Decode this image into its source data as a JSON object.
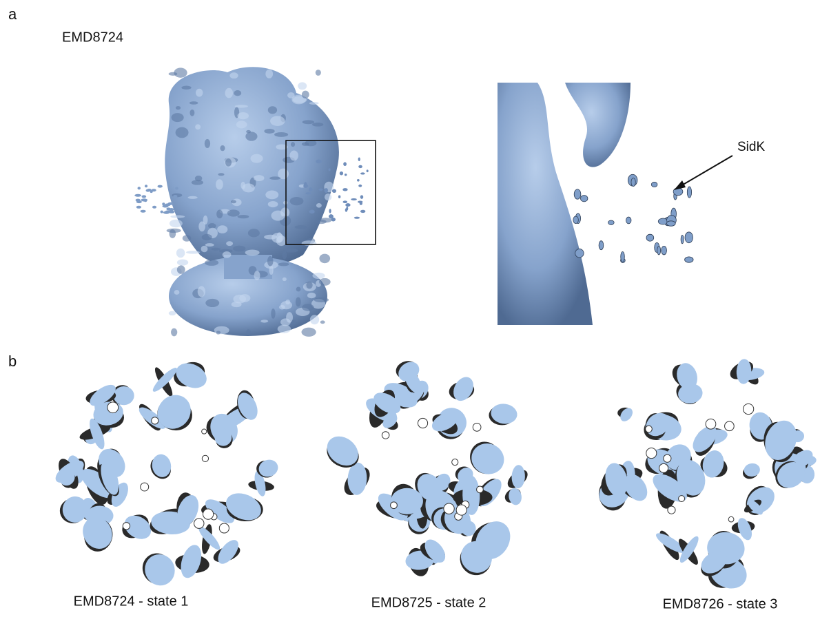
{
  "panel_a": {
    "label": "a",
    "title": "EMD8724",
    "annotation": "SidK"
  },
  "panel_b": {
    "label": "b",
    "captions": [
      "EMD8724 - state 1",
      "EMD8725 - state 2",
      "EMD8726 - state 3"
    ]
  }
}
